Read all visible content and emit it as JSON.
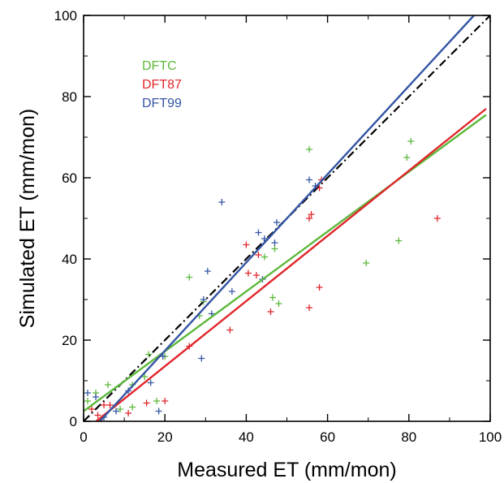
{
  "chart_data": {
    "type": "scatter",
    "title": "",
    "xlabel": "Measured ET (mm/mon)",
    "ylabel": "Simulated ET (mm/mon)",
    "xlim": [
      0,
      100
    ],
    "ylim": [
      0,
      100
    ],
    "xticks": [
      "0",
      "20",
      "40",
      "60",
      "80",
      "100"
    ],
    "yticks": [
      "0",
      "20",
      "40",
      "60",
      "80",
      "100"
    ],
    "grid": false,
    "legend_position": "top-left",
    "one_to_one_line": {
      "style": "dash-dot",
      "color": "#000000",
      "x": [
        0,
        100
      ],
      "y": [
        0,
        100
      ]
    },
    "series": [
      {
        "name": "DFTC",
        "color": "#5cb83a",
        "marker": "plus",
        "points": [
          [
            1,
            5
          ],
          [
            3,
            7
          ],
          [
            6,
            9
          ],
          [
            9,
            3
          ],
          [
            12,
            3.5
          ],
          [
            12,
            9
          ],
          [
            15,
            11
          ],
          [
            16,
            16.5
          ],
          [
            18,
            5
          ],
          [
            20,
            16
          ],
          [
            26,
            35.5
          ],
          [
            28.5,
            26
          ],
          [
            29.5,
            29.5
          ],
          [
            44.5,
            40.5
          ],
          [
            46.5,
            30.5
          ],
          [
            47,
            42.5
          ],
          [
            48,
            29
          ],
          [
            55.5,
            67
          ],
          [
            69.5,
            39
          ],
          [
            77.5,
            44.5
          ],
          [
            79.5,
            65
          ],
          [
            80.5,
            69
          ]
        ],
        "fit": {
          "x": [
            0,
            99
          ],
          "y": [
            2.5,
            75.5
          ]
        }
      },
      {
        "name": "DFT87",
        "color": "#e0262b",
        "marker": "plus",
        "points": [
          [
            2,
            3
          ],
          [
            3.5,
            1.5
          ],
          [
            5,
            4
          ],
          [
            6.5,
            4
          ],
          [
            11,
            2
          ],
          [
            15.5,
            4.5
          ],
          [
            20,
            5
          ],
          [
            26,
            18.5
          ],
          [
            36,
            22.5
          ],
          [
            40,
            43.5
          ],
          [
            40.5,
            36.5
          ],
          [
            42.5,
            36
          ],
          [
            43,
            41
          ],
          [
            46,
            27
          ],
          [
            55.5,
            28
          ],
          [
            55.5,
            50
          ],
          [
            56,
            51
          ],
          [
            58,
            33
          ],
          [
            58,
            57.5
          ],
          [
            58.5,
            59.5
          ],
          [
            87,
            50
          ]
        ],
        "fit": {
          "x": [
            0,
            99
          ],
          "y": [
            -2.5,
            77
          ]
        }
      },
      {
        "name": "DFT99",
        "color": "#3455a4",
        "marker": "plus",
        "points": [
          [
            1,
            7
          ],
          [
            3,
            6
          ],
          [
            5,
            1
          ],
          [
            8,
            2.5
          ],
          [
            11,
            7.5
          ],
          [
            16.5,
            9.5
          ],
          [
            18.5,
            2.5
          ],
          [
            19.5,
            16
          ],
          [
            29,
            15.5
          ],
          [
            29.5,
            30
          ],
          [
            30.5,
            37
          ],
          [
            31.5,
            26.5
          ],
          [
            34,
            54
          ],
          [
            36.5,
            32
          ],
          [
            43,
            46.5
          ],
          [
            44,
            35
          ],
          [
            44.5,
            45
          ],
          [
            47,
            44
          ],
          [
            47.5,
            49
          ],
          [
            55.5,
            59.5
          ],
          [
            57,
            58
          ]
        ],
        "fit": {
          "x": [
            4,
            96
          ],
          "y": [
            0,
            100
          ]
        }
      }
    ]
  }
}
